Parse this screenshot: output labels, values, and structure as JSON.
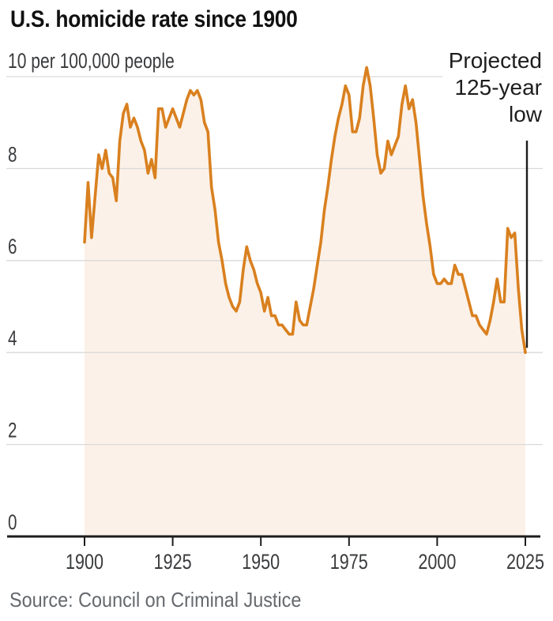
{
  "page": {
    "title": "U.S. homicide rate since 1900",
    "source": "Source: Council on Criminal Justice"
  },
  "chart_data": {
    "type": "line",
    "title": "U.S. homicide rate since 1900",
    "unit_label": "10 per 100,000 people",
    "series_name": "U.S. homicide rate per 100,000 people",
    "xlim": [
      1900,
      2025
    ],
    "ylim": [
      0,
      10
    ],
    "y_ticks": [
      0,
      2,
      4,
      6,
      8,
      10
    ],
    "x_ticks": [
      1900,
      1925,
      1950,
      1975,
      2000,
      2025
    ],
    "grid": "horizontal",
    "legend": "none",
    "annotation": {
      "text": "Projected\n125-year\nlow",
      "points_to_year": 2025,
      "points_to_value": 4.0
    },
    "x": [
      1900,
      1901,
      1902,
      1903,
      1904,
      1905,
      1906,
      1907,
      1908,
      1909,
      1910,
      1911,
      1912,
      1913,
      1914,
      1915,
      1916,
      1917,
      1918,
      1919,
      1920,
      1921,
      1922,
      1923,
      1924,
      1925,
      1926,
      1927,
      1928,
      1929,
      1930,
      1931,
      1932,
      1933,
      1934,
      1935,
      1936,
      1937,
      1938,
      1939,
      1940,
      1941,
      1942,
      1943,
      1944,
      1945,
      1946,
      1947,
      1948,
      1949,
      1950,
      1951,
      1952,
      1953,
      1954,
      1955,
      1956,
      1957,
      1958,
      1959,
      1960,
      1961,
      1962,
      1963,
      1964,
      1965,
      1966,
      1967,
      1968,
      1969,
      1970,
      1971,
      1972,
      1973,
      1974,
      1975,
      1976,
      1977,
      1978,
      1979,
      1980,
      1981,
      1982,
      1983,
      1984,
      1985,
      1986,
      1987,
      1988,
      1989,
      1990,
      1991,
      1992,
      1993,
      1994,
      1995,
      1996,
      1997,
      1998,
      1999,
      2000,
      2001,
      2002,
      2003,
      2004,
      2005,
      2006,
      2007,
      2008,
      2009,
      2010,
      2011,
      2012,
      2013,
      2014,
      2015,
      2016,
      2017,
      2018,
      2019,
      2020,
      2021,
      2022,
      2023,
      2024,
      2025
    ],
    "values": [
      6.4,
      7.7,
      6.5,
      7.4,
      8.3,
      8.0,
      8.4,
      7.9,
      7.8,
      7.3,
      8.6,
      9.2,
      9.4,
      8.9,
      9.1,
      8.9,
      8.6,
      8.4,
      7.9,
      8.2,
      7.8,
      9.3,
      9.3,
      8.9,
      9.1,
      9.3,
      9.1,
      8.9,
      9.2,
      9.5,
      9.7,
      9.6,
      9.7,
      9.5,
      9.0,
      8.8,
      7.6,
      7.1,
      6.4,
      6.0,
      5.5,
      5.2,
      5.0,
      4.9,
      5.1,
      5.8,
      6.3,
      6.0,
      5.8,
      5.5,
      5.3,
      4.9,
      5.2,
      4.8,
      4.8,
      4.6,
      4.6,
      4.5,
      4.4,
      4.4,
      5.1,
      4.7,
      4.6,
      4.6,
      5.0,
      5.4,
      5.9,
      6.4,
      7.1,
      7.6,
      8.2,
      8.7,
      9.1,
      9.4,
      9.8,
      9.6,
      8.8,
      8.8,
      9.1,
      9.8,
      10.2,
      9.8,
      9.1,
      8.3,
      7.9,
      8.0,
      8.6,
      8.3,
      8.5,
      8.7,
      9.4,
      9.8,
      9.3,
      9.5,
      9.0,
      8.2,
      7.4,
      6.8,
      6.3,
      5.7,
      5.5,
      5.5,
      5.6,
      5.5,
      5.5,
      5.9,
      5.7,
      5.7,
      5.4,
      5.1,
      4.8,
      4.8,
      4.6,
      4.5,
      4.4,
      4.7,
      5.1,
      5.6,
      5.1,
      5.1,
      6.7,
      6.5,
      6.6,
      5.4,
      4.5,
      4.0
    ],
    "colors": {
      "line": "#d9801f",
      "area_fill": "#fbf1e8",
      "grid": "#d9d9d9",
      "axis": "#1d1d1f",
      "text": "#3a3b3d",
      "title": "#111111",
      "source": "#65686c",
      "annotation": "#1d1d1f",
      "background": "#ffffff"
    }
  }
}
